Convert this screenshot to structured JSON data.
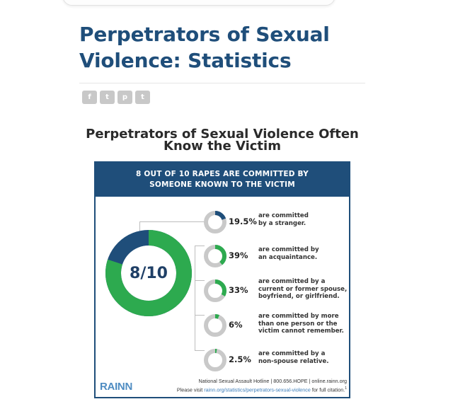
{
  "page": {
    "title": "Perpetrators of Sexual Violence: Statistics"
  },
  "share": [
    {
      "name": "facebook-share-button",
      "glyph": "f"
    },
    {
      "name": "twitter-share-button",
      "glyph": "t"
    },
    {
      "name": "pinterest-share-button",
      "glyph": "p"
    },
    {
      "name": "tumblr-share-button",
      "glyph": "t"
    }
  ],
  "infographic": {
    "title_line1": "Perpetrators of Sexual Violence Often",
    "title_line2": "Know the Victim",
    "header_line1": "8 OUT OF 10 RAPES ARE COMMITTED BY",
    "header_line2": "SOMEONE KNOWN TO THE VICTIM",
    "main_label": "8/10",
    "main_fraction": 0.8,
    "stats": [
      {
        "pct": "19.5%",
        "value": 19.5,
        "desc": [
          "are committed",
          "by a stranger."
        ],
        "color": "#1f4e7a"
      },
      {
        "pct": "39%",
        "value": 39,
        "desc": [
          "are committed by",
          "an acquaintance."
        ],
        "color": "#2daa4f"
      },
      {
        "pct": "33%",
        "value": 33,
        "desc": [
          "are committed by a",
          "current or former spouse,",
          "boyfriend, or girlfriend."
        ],
        "color": "#2daa4f"
      },
      {
        "pct": "6%",
        "value": 6,
        "desc": [
          "are committed by more",
          "than one person or the",
          "victim cannot remember."
        ],
        "color": "#2daa4f"
      },
      {
        "pct": "2.5%",
        "value": 2.5,
        "desc": [
          "are committed by a",
          "non-spouse relative."
        ],
        "color": "#2daa4f"
      }
    ],
    "logo": "RAINN",
    "footer_line1": "National Sexual Assault Hotline | 800.656.HOPE | online.rainn.org",
    "footer_line2_prefix": "Please visit ",
    "footer_line2_link": "rainn.org/statistics/perpetrators-sexual-violence",
    "footer_line2_suffix": " for full citation.",
    "footer_sup": "1"
  },
  "colors": {
    "title": "#1f4e7a",
    "navy": "#1f4e7a",
    "green": "#2daa4f",
    "ring_track": "#c9c9c9"
  }
}
